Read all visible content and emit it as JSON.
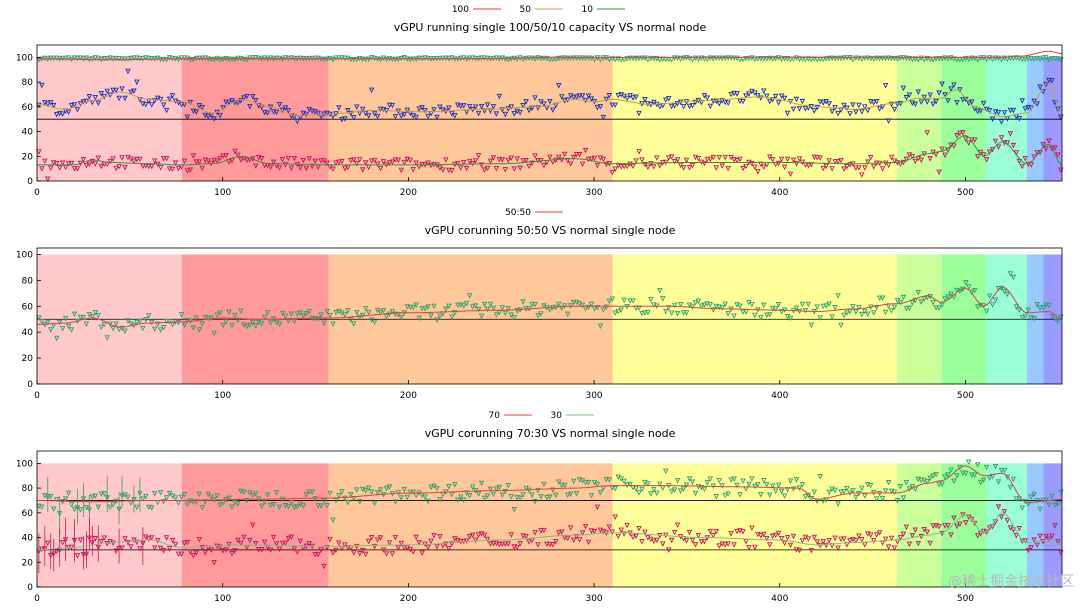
{
  "watermark": "@稀土掘金技术社区",
  "band_colors": {
    "b1": "#ffc9c9",
    "b2": "#ff9a9a",
    "b3": "#ffc89a",
    "b4": "#ffff9a",
    "b5": "#caff9a",
    "b6": "#9aff9a",
    "b7": "#9affd6",
    "b8": "#9ac9ff",
    "b9": "#9a9aff"
  },
  "chart_data": [
    {
      "type": "scatter",
      "title": "vGPU running single 100/50/10 capacity VS normal node",
      "xlim": [
        0,
        552
      ],
      "ylim": [
        0,
        110
      ],
      "xticks": [
        "0",
        "100",
        "200",
        "300",
        "400",
        "500"
      ],
      "yticks": [
        "0",
        "20",
        "40",
        "60",
        "80",
        "100"
      ],
      "grid": false,
      "legend_position": "top-center",
      "bands": [
        {
          "x0": 0,
          "x1": 78,
          "color": "b1"
        },
        {
          "x0": 78,
          "x1": 157,
          "color": "b2"
        },
        {
          "x0": 157,
          "x1": 310,
          "color": "b3"
        },
        {
          "x0": 310,
          "x1": 463,
          "color": "b4"
        },
        {
          "x0": 463,
          "x1": 487,
          "color": "b5"
        },
        {
          "x0": 487,
          "x1": 511,
          "color": "b6"
        },
        {
          "x0": 511,
          "x1": 533,
          "color": "b7"
        },
        {
          "x0": 533,
          "x1": 542,
          "color": "b8"
        },
        {
          "x0": 542,
          "x1": 552,
          "color": "b9"
        }
      ],
      "series": [
        {
          "name": "100",
          "line_color": "#e04040",
          "marker_color": "#2aa06a",
          "x": [
            0,
            40,
            80,
            120,
            160,
            200,
            240,
            280,
            310,
            360,
            400,
            440,
            480,
            500,
            520,
            530,
            545,
            552
          ],
          "y": [
            99,
            98,
            99,
            99,
            99,
            99,
            99,
            100,
            100,
            100,
            100,
            100,
            100,
            100,
            100,
            101,
            105,
            103
          ]
        },
        {
          "name": "50",
          "line_color": "#c9a030",
          "marker_color": "#1a2dbf",
          "x": [
            0,
            15,
            30,
            45,
            60,
            78,
            95,
            110,
            125,
            140,
            157,
            180,
            210,
            240,
            270,
            290,
            300,
            310,
            330,
            360,
            390,
            420,
            440,
            463,
            475,
            487,
            495,
            505,
            520,
            533,
            545,
            552
          ],
          "y": [
            62,
            58,
            65,
            72,
            66,
            64,
            55,
            66,
            60,
            53,
            54,
            57,
            56,
            58,
            60,
            66,
            64,
            66,
            62,
            65,
            68,
            60,
            58,
            63,
            67,
            67,
            74,
            60,
            52,
            55,
            80,
            53
          ]
        },
        {
          "name": "10",
          "line_color": "#3a8f3a",
          "marker_color": "#c8145a",
          "x": [
            0,
            20,
            30,
            40,
            60,
            78,
            95,
            110,
            125,
            157,
            200,
            250,
            290,
            310,
            350,
            400,
            440,
            463,
            480,
            487,
            500,
            510,
            520,
            533,
            545,
            552
          ],
          "y": [
            13,
            13,
            17,
            15,
            14,
            13,
            14,
            20,
            14,
            13,
            13,
            14,
            18,
            14,
            15,
            15,
            14,
            15,
            22,
            24,
            37,
            20,
            32,
            14,
            30,
            12
          ]
        }
      ],
      "reference_lines": [
        50
      ]
    },
    {
      "type": "scatter",
      "title": "vGPU corunning 50:50 VS normal single node",
      "xlim": [
        0,
        552
      ],
      "ylim": [
        0,
        105
      ],
      "xticks": [
        "0",
        "100",
        "200",
        "300",
        "400",
        "500"
      ],
      "yticks": [
        "0",
        "20",
        "40",
        "60",
        "80",
        "100"
      ],
      "grid": false,
      "legend_position": "top-center",
      "band_top": 100,
      "bands": [
        {
          "x0": 0,
          "x1": 78,
          "color": "b1"
        },
        {
          "x0": 78,
          "x1": 157,
          "color": "b2"
        },
        {
          "x0": 157,
          "x1": 310,
          "color": "b3"
        },
        {
          "x0": 310,
          "x1": 463,
          "color": "b4"
        },
        {
          "x0": 463,
          "x1": 487,
          "color": "b5"
        },
        {
          "x0": 487,
          "x1": 511,
          "color": "b6"
        },
        {
          "x0": 511,
          "x1": 533,
          "color": "b7"
        },
        {
          "x0": 533,
          "x1": 542,
          "color": "b8"
        },
        {
          "x0": 542,
          "x1": 552,
          "color": "b9"
        }
      ],
      "series": [
        {
          "name": "50:50",
          "line_color": "#e04040",
          "marker_color": "#2aa06a",
          "x": [
            0,
            15,
            30,
            45,
            60,
            78,
            100,
            120,
            157,
            200,
            250,
            290,
            310,
            340,
            370,
            400,
            420,
            440,
            463,
            480,
            487,
            500,
            510,
            520,
            533,
            545,
            552
          ],
          "y": [
            46,
            47,
            51,
            44,
            47,
            48,
            51,
            50,
            51,
            55,
            57,
            60,
            60,
            60,
            58,
            57,
            56,
            58,
            62,
            68,
            63,
            74,
            60,
            75,
            55,
            56,
            50
          ]
        }
      ],
      "reference_lines": [
        50
      ]
    },
    {
      "type": "scatter",
      "title": "vGPU corunning 70:30 VS normal single node",
      "xlim": [
        0,
        552
      ],
      "ylim": [
        0,
        110
      ],
      "xticks": [
        "0",
        "100",
        "200",
        "300",
        "400",
        "500"
      ],
      "yticks": [
        "0",
        "20",
        "40",
        "60",
        "80",
        "100"
      ],
      "grid": false,
      "legend_position": "top-center",
      "bands": [
        {
          "x0": 0,
          "x1": 78,
          "color": "b1"
        },
        {
          "x0": 78,
          "x1": 157,
          "color": "b2"
        },
        {
          "x0": 157,
          "x1": 310,
          "color": "b3"
        },
        {
          "x0": 310,
          "x1": 463,
          "color": "b4"
        },
        {
          "x0": 463,
          "x1": 487,
          "color": "b5"
        },
        {
          "x0": 487,
          "x1": 511,
          "color": "b6"
        },
        {
          "x0": 511,
          "x1": 533,
          "color": "b7"
        },
        {
          "x0": 533,
          "x1": 542,
          "color": "b8"
        },
        {
          "x0": 542,
          "x1": 552,
          "color": "b9"
        }
      ],
      "series": [
        {
          "name": "70",
          "line_color": "#e04040",
          "marker_color": "#2aa06a",
          "x": [
            0,
            30,
            60,
            78,
            120,
            157,
            200,
            250,
            290,
            310,
            340,
            380,
            410,
            420,
            440,
            463,
            480,
            487,
            500,
            510,
            520,
            533,
            545,
            552
          ],
          "y": [
            70,
            69,
            70,
            70,
            71,
            72,
            76,
            78,
            80,
            82,
            82,
            81,
            80,
            71,
            76,
            76,
            84,
            86,
            98,
            90,
            92,
            68,
            70,
            71
          ]
        },
        {
          "name": "30",
          "line_color": "#7fbf7f",
          "marker_color": "#c8145a",
          "x": [
            0,
            20,
            40,
            60,
            78,
            110,
            157,
            200,
            250,
            290,
            310,
            360,
            400,
            420,
            440,
            463,
            480,
            487,
            500,
            510,
            520,
            533,
            545,
            552
          ],
          "y": [
            30,
            32,
            36,
            38,
            32,
            34,
            33,
            34,
            38,
            42,
            44,
            40,
            38,
            34,
            36,
            38,
            42,
            44,
            58,
            44,
            60,
            36,
            38,
            34
          ]
        }
      ],
      "reference_lines": [
        30,
        70
      ]
    }
  ]
}
